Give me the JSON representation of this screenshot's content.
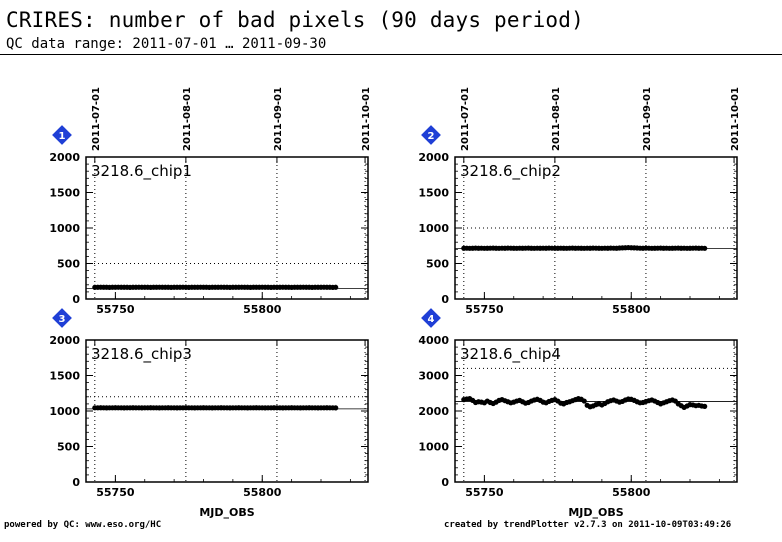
{
  "header": {
    "title": "CRIRES: number of bad pixels (90 days period)",
    "subtitle": "QC data range: 2011-07-01 … 2011-09-30"
  },
  "footer": {
    "left": "powered by QC: www.eso.org/HC",
    "right": "created by trendPlotter v2.7.3 on 2011-10-09T03:49:26"
  },
  "colors": {
    "marker": "#000000",
    "badge": "#1f3fd6",
    "badge_text": "#ffffff"
  },
  "chart_data": [
    {
      "type": "scatter",
      "badge": "1",
      "label": "3218.6_chip1",
      "xlabel": "",
      "top_ticks": [
        "2011-07-01",
        "2011-08-01",
        "2011-09-01",
        "2011-10-01"
      ],
      "top_tick_x": [
        55743,
        55774,
        55805,
        55835
      ],
      "xlim": [
        55740,
        55836
      ],
      "ylim": [
        0,
        2000
      ],
      "yticks": [
        0,
        500,
        1000,
        1500,
        2000
      ],
      "xticks": [
        55750,
        55800
      ],
      "ref_line": 150,
      "upper_line": 500,
      "series": [
        {
          "x_start": 55743,
          "x_end": 55825,
          "step": 1,
          "y": [
            165,
            165,
            166,
            165,
            165,
            164,
            165,
            165,
            166,
            165,
            165,
            165,
            164,
            165,
            165,
            166,
            165,
            165,
            165,
            164,
            165,
            165,
            166,
            165,
            165,
            165,
            164,
            165,
            165,
            165,
            166,
            165,
            164,
            165,
            165,
            165,
            166,
            165,
            165,
            164,
            165,
            165,
            165,
            166,
            165,
            165,
            164,
            165,
            165,
            165,
            166,
            165,
            165,
            164,
            165,
            165,
            165,
            166,
            165,
            165,
            164,
            165,
            165,
            165,
            166,
            165,
            165,
            164,
            165,
            165,
            165,
            166,
            165,
            165,
            164,
            165,
            165,
            165,
            166,
            165,
            165,
            164,
            165
          ]
        }
      ]
    },
    {
      "type": "scatter",
      "badge": "2",
      "label": "3218.6_chip2",
      "xlabel": "",
      "top_ticks": [
        "2011-07-01",
        "2011-08-01",
        "2011-09-01",
        "2011-10-01"
      ],
      "top_tick_x": [
        55743,
        55774,
        55805,
        55835
      ],
      "xlim": [
        55740,
        55836
      ],
      "ylim": [
        0,
        2000
      ],
      "yticks": [
        0,
        500,
        1000,
        1500,
        2000
      ],
      "xticks": [
        55750,
        55800
      ],
      "ref_line": 710,
      "upper_line": 1000,
      "series": [
        {
          "x_start": 55743,
          "x_end": 55825,
          "step": 1,
          "y": [
            715,
            716,
            714,
            715,
            717,
            715,
            716,
            714,
            715,
            716,
            717,
            715,
            714,
            716,
            715,
            717,
            716,
            715,
            714,
            716,
            715,
            716,
            717,
            715,
            714,
            716,
            715,
            716,
            715,
            717,
            716,
            714,
            715,
            716,
            715,
            714,
            716,
            717,
            715,
            716,
            715,
            714,
            716,
            715,
            717,
            716,
            715,
            714,
            716,
            715,
            717,
            716,
            715,
            718,
            720,
            722,
            724,
            722,
            720,
            718,
            716,
            715,
            717,
            716,
            714,
            715,
            716,
            717,
            715,
            716,
            714,
            715,
            716,
            717,
            715,
            716,
            714,
            715,
            716,
            717,
            715,
            716,
            714
          ]
        }
      ]
    },
    {
      "type": "scatter",
      "badge": "3",
      "label": "3218.6_chip3",
      "xlabel": "MJD_OBS",
      "top_ticks": [],
      "top_tick_x": [
        55743,
        55774,
        55805,
        55835
      ],
      "xlim": [
        55740,
        55836
      ],
      "ylim": [
        0,
        2000
      ],
      "yticks": [
        0,
        500,
        1000,
        1500,
        2000
      ],
      "xticks": [
        55750,
        55800
      ],
      "ref_line": 1030,
      "upper_line": 1200,
      "series": [
        {
          "x_start": 55743,
          "x_end": 55825,
          "step": 1,
          "y": [
            1045,
            1045,
            1046,
            1045,
            1044,
            1045,
            1045,
            1046,
            1045,
            1045,
            1044,
            1045,
            1045,
            1046,
            1045,
            1045,
            1044,
            1045,
            1045,
            1046,
            1045,
            1045,
            1044,
            1045,
            1045,
            1046,
            1045,
            1045,
            1044,
            1045,
            1045,
            1046,
            1045,
            1045,
            1044,
            1045,
            1045,
            1046,
            1045,
            1045,
            1044,
            1045,
            1045,
            1046,
            1045,
            1045,
            1044,
            1045,
            1045,
            1046,
            1045,
            1045,
            1044,
            1045,
            1045,
            1046,
            1045,
            1045,
            1044,
            1045,
            1045,
            1046,
            1045,
            1045,
            1044,
            1045,
            1045,
            1046,
            1045,
            1045,
            1044,
            1045,
            1045,
            1046,
            1045,
            1045,
            1044,
            1045,
            1045,
            1046,
            1045,
            1045,
            1044
          ]
        }
      ]
    },
    {
      "type": "scatter",
      "badge": "4",
      "label": "3218.6_chip4",
      "xlabel": "MJD_OBS",
      "top_ticks": [],
      "top_tick_x": [
        55743,
        55774,
        55805,
        55835
      ],
      "xlim": [
        55740,
        55836
      ],
      "ylim": [
        0,
        4000
      ],
      "yticks": [
        0,
        1000,
        2000,
        3000,
        4000
      ],
      "xticks": [
        55750,
        55800
      ],
      "ref_line": 2270,
      "upper_line": 3200,
      "series": [
        {
          "x_start": 55743,
          "x_end": 55825,
          "step": 1,
          "y": [
            2320,
            2340,
            2350,
            2300,
            2240,
            2260,
            2250,
            2230,
            2280,
            2240,
            2210,
            2250,
            2300,
            2320,
            2290,
            2260,
            2230,
            2250,
            2280,
            2300,
            2260,
            2220,
            2240,
            2280,
            2310,
            2330,
            2300,
            2250,
            2230,
            2270,
            2300,
            2320,
            2280,
            2220,
            2200,
            2240,
            2260,
            2290,
            2320,
            2350,
            2330,
            2280,
            2160,
            2120,
            2140,
            2180,
            2200,
            2170,
            2210,
            2260,
            2290,
            2310,
            2280,
            2250,
            2270,
            2310,
            2340,
            2330,
            2300,
            2260,
            2230,
            2240,
            2270,
            2290,
            2310,
            2280,
            2240,
            2200,
            2230,
            2260,
            2290,
            2310,
            2280,
            2200,
            2150,
            2100,
            2140,
            2180,
            2170,
            2150,
            2160,
            2140,
            2130
          ]
        }
      ]
    }
  ]
}
